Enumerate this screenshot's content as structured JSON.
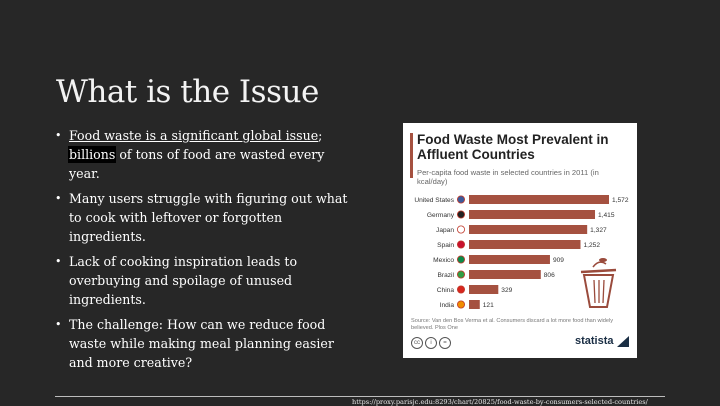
{
  "slide": {
    "title": "What is the Issue",
    "bullets": [
      {
        "lead": "Food waste is a significant global issue",
        "colon": ";",
        "hl": "billions",
        "rest": " of tons of food are wasted every year."
      },
      {
        "text": "Many users struggle with figuring out what to cook with leftover or forgotten ingredients."
      },
      {
        "text": "Lack of cooking inspiration leads to overbuying and spoilage of unused ingredients."
      },
      {
        "text": "The challenge: How can we reduce food waste while making meal planning easier and more creative?"
      }
    ],
    "source_url": "https://proxy.parisjc.edu:8293/chart/20825/food-waste-by-consumers-selected-countries/"
  },
  "chart_card": {
    "source_note": "Source: Van den Bos Verma et al. Consumers discard a lot more food than widely believed. Plos One",
    "brand": "statista"
  },
  "chart_data": {
    "type": "bar",
    "orientation": "horizontal",
    "title": "Food Waste Most Prevalent in Affluent Countries",
    "subtitle": "Per-capita food waste in selected countries in 2011 (in kcal/day)",
    "categories": [
      "United States",
      "Germany",
      "Japan",
      "Spain",
      "Mexico",
      "Brazil",
      "China",
      "India"
    ],
    "values": [
      1572,
      1415,
      1327,
      1252,
      909,
      806,
      329,
      121
    ],
    "value_labels": [
      "1,572",
      "1,415",
      "1,327",
      "1,252",
      "909",
      "806",
      "329",
      "121"
    ],
    "xlim": [
      0,
      1572
    ],
    "bar_color": "#a55140",
    "grid": false,
    "legend": "none"
  }
}
